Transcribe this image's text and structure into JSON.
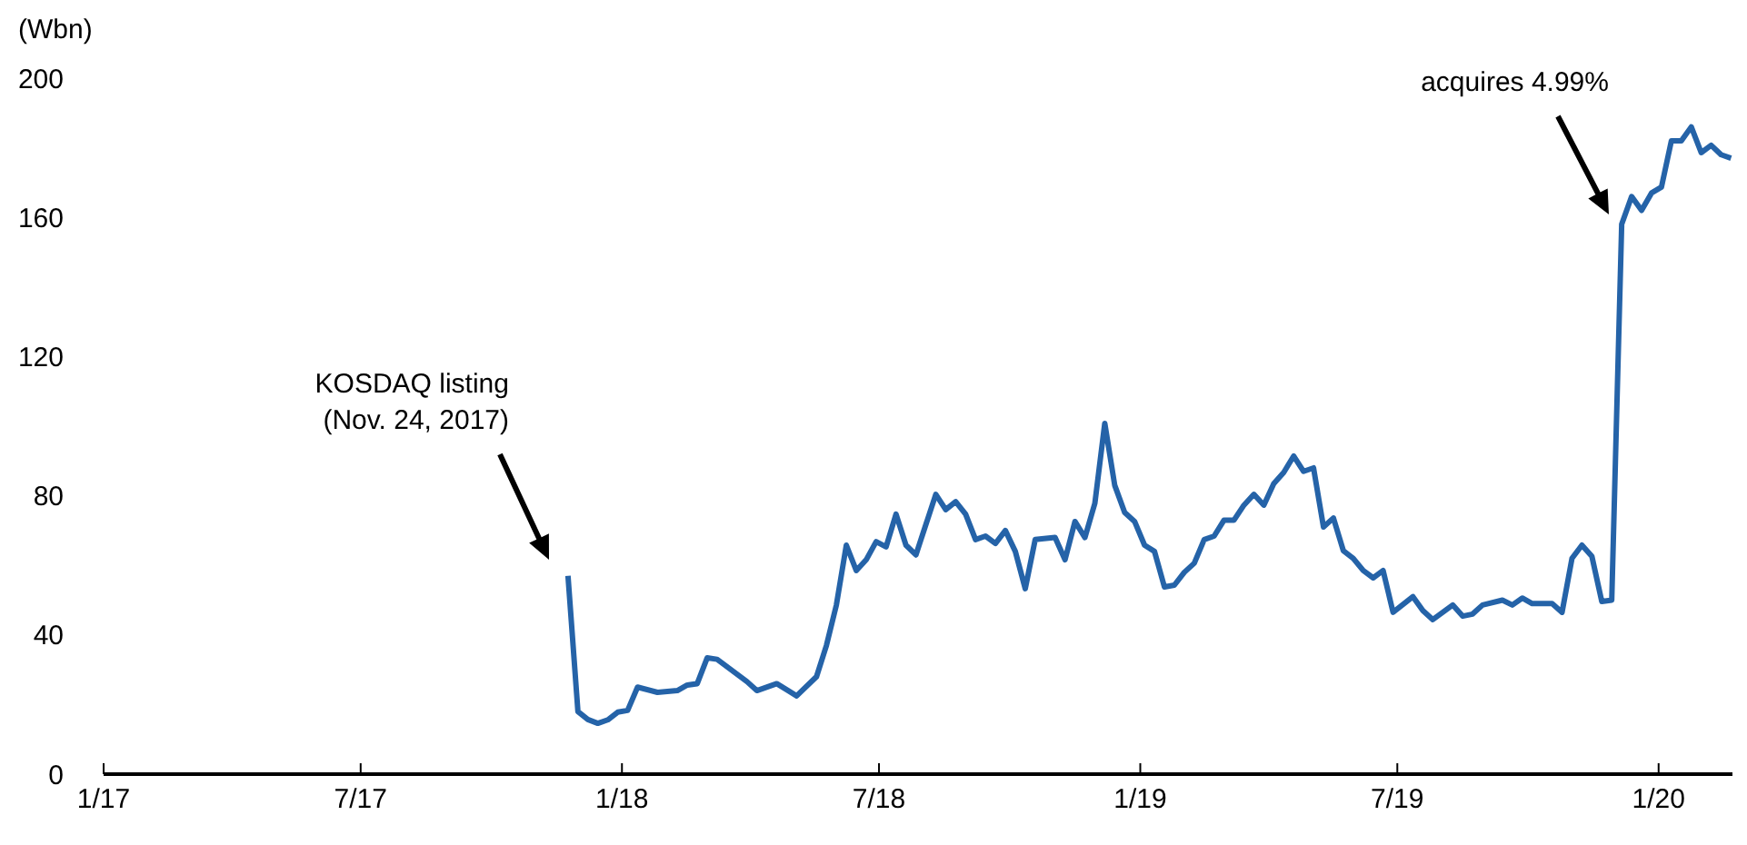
{
  "chart_data": {
    "type": "line",
    "ylabel": "(Wbn)",
    "x": [
      "2017-11-24",
      "2017-12-01",
      "2017-12-08",
      "2017-12-15",
      "2017-12-22",
      "2017-12-29",
      "2018-01-05",
      "2018-01-12",
      "2018-01-26",
      "2018-02-09",
      "2018-02-16",
      "2018-02-23",
      "2018-03-02",
      "2018-03-09",
      "2018-03-30",
      "2018-04-06",
      "2018-04-20",
      "2018-05-04",
      "2018-05-18",
      "2018-05-25",
      "2018-06-01",
      "2018-06-08",
      "2018-06-15",
      "2018-06-22",
      "2018-06-29",
      "2018-07-06",
      "2018-07-13",
      "2018-07-20",
      "2018-07-27",
      "2018-08-10",
      "2018-08-17",
      "2018-08-24",
      "2018-08-31",
      "2018-09-07",
      "2018-09-14",
      "2018-09-21",
      "2018-09-28",
      "2018-10-05",
      "2018-10-12",
      "2018-10-19",
      "2018-11-02",
      "2018-11-09",
      "2018-11-16",
      "2018-11-23",
      "2018-11-30",
      "2018-12-07",
      "2018-12-14",
      "2018-12-21",
      "2018-12-28",
      "2019-01-04",
      "2019-01-11",
      "2019-01-18",
      "2019-01-25",
      "2019-02-01",
      "2019-02-08",
      "2019-02-15",
      "2019-02-22",
      "2019-03-01",
      "2019-03-08",
      "2019-03-15",
      "2019-03-22",
      "2019-03-29",
      "2019-04-05",
      "2019-04-12",
      "2019-04-19",
      "2019-04-26",
      "2019-05-03",
      "2019-05-10",
      "2019-05-17",
      "2019-05-24",
      "2019-05-31",
      "2019-06-07",
      "2019-06-14",
      "2019-06-21",
      "2019-06-28",
      "2019-07-12",
      "2019-07-19",
      "2019-07-26",
      "2019-08-09",
      "2019-08-16",
      "2019-08-23",
      "2019-08-30",
      "2019-09-13",
      "2019-09-20",
      "2019-09-27",
      "2019-10-04",
      "2019-10-18",
      "2019-10-25",
      "2019-11-01",
      "2019-11-08",
      "2019-11-15",
      "2019-11-22",
      "2019-11-29",
      "2019-12-06",
      "2019-12-13",
      "2019-12-20",
      "2019-12-27",
      "2020-01-03",
      "2020-01-10",
      "2020-01-17",
      "2020-01-24",
      "2020-01-31",
      "2020-02-07",
      "2020-02-14",
      "2020-02-21"
    ],
    "series": [
      {
        "color": "#2563a8",
        "values": [
          57,
          18,
          15.7,
          14.6,
          15.6,
          17.8,
          18.3,
          25,
          23.5,
          24,
          25.6,
          26,
          33.4,
          33,
          26.6,
          24,
          26,
          22.5,
          28,
          37,
          48.6,
          65.8,
          58.5,
          61.6,
          66.8,
          65.3,
          74.7,
          65.8,
          63,
          80.4,
          76,
          78.3,
          74.7,
          67.4,
          68.4,
          66.3,
          70,
          64,
          53.3,
          67.4,
          68,
          61.6,
          72.6,
          68,
          77.8,
          100.8,
          83,
          75.2,
          72.6,
          65.8,
          64,
          53.8,
          54.3,
          58,
          60.6,
          67.4,
          68.4,
          73,
          73,
          77.3,
          80.4,
          77.3,
          83.5,
          86.7,
          91.4,
          87,
          88,
          71,
          73.6,
          64.2,
          62,
          58.5,
          56.4,
          58.5,
          46.5,
          51,
          47,
          44.4,
          48.6,
          45.4,
          46,
          48.6,
          50,
          48.6,
          50.6,
          49,
          49,
          46.5,
          62,
          65.8,
          62.6,
          49.6,
          50,
          158,
          166,
          162,
          167,
          168.7,
          182,
          182,
          186,
          178.6,
          180.7,
          178,
          177
        ]
      }
    ],
    "xlim": [
      "2017-01-01",
      "2020-02-22"
    ],
    "xticks": [
      {
        "value": "2017-01-01",
        "label": "1/17"
      },
      {
        "value": "2017-07-01",
        "label": "7/17"
      },
      {
        "value": "2018-01-01",
        "label": "1/18"
      },
      {
        "value": "2018-07-01",
        "label": "7/18"
      },
      {
        "value": "2019-01-01",
        "label": "1/19"
      },
      {
        "value": "2019-07-01",
        "label": "7/19"
      },
      {
        "value": "2020-01-01",
        "label": "1/20"
      }
    ],
    "ylim": [
      0,
      200
    ],
    "yticks": [
      0,
      40,
      80,
      120,
      160,
      200
    ],
    "grid": false,
    "legend": false,
    "marker": "none",
    "line_style": "solid",
    "annotations": [
      "KOSDAQ listing\n(Nov. 24, 2017)",
      "acquires 4.99%"
    ]
  }
}
